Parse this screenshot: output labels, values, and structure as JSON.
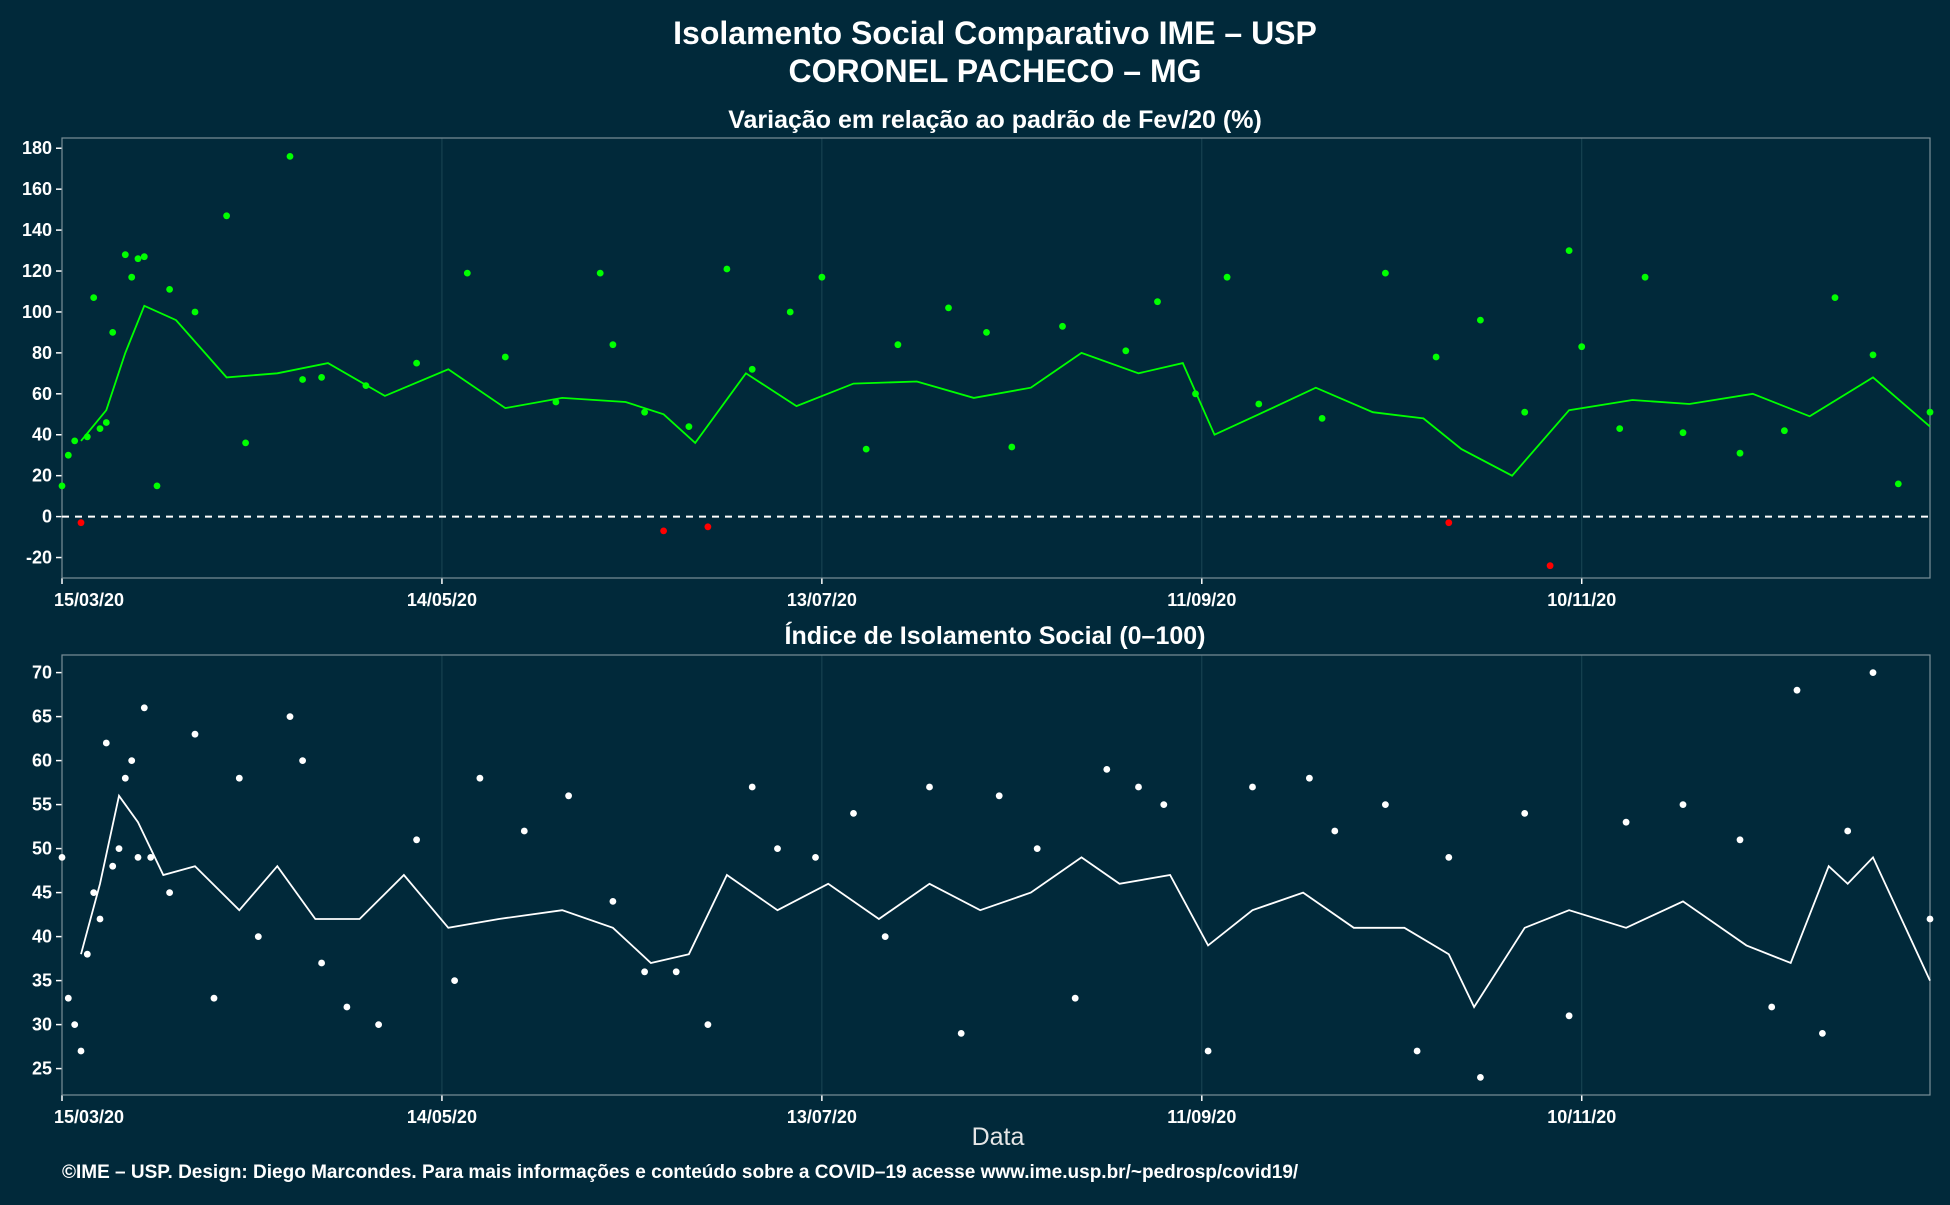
{
  "title": "Isolamento Social Comparativo IME – USP",
  "subtitle": "CORONEL PACHECO – MG",
  "xlabel": "Data",
  "footer": "©IME – USP. Design: Diego Marcondes. Para mais informações e conteúdo sobre a COVID–19 acesse www.ime.usp.br/~pedrosp/covid19/",
  "colors": {
    "background": "#01293a",
    "positive": "#00ff00",
    "negative": "#ff0000",
    "index": "#ffffff",
    "grid": "#1b4654"
  },
  "chart_data": [
    {
      "type": "scatter",
      "title": "Variação em relação ao padrão de Fev/20 (%)",
      "x_start": "2020-03-15",
      "x_end": "2021-01-04",
      "x_ticks": [
        "15/03/20",
        "14/05/20",
        "13/07/20",
        "11/09/20",
        "10/11/20"
      ],
      "ylim": [
        -30,
        185
      ],
      "y_ticks": [
        -20,
        0,
        20,
        40,
        60,
        80,
        100,
        120,
        140,
        160,
        180
      ],
      "reference_line": 0,
      "grid": true,
      "series": [
        {
          "kind": "daily points (green ≥ 0, red < 0)",
          "x": [
            "2020-03-15",
            "2020-03-16",
            "2020-03-17",
            "2020-03-18",
            "2020-03-19",
            "2020-03-20",
            "2020-03-21",
            "2020-03-22",
            "2020-03-23",
            "2020-03-25",
            "2020-03-26",
            "2020-03-27",
            "2020-03-28",
            "2020-03-30",
            "2020-04-01",
            "2020-04-05",
            "2020-04-10",
            "2020-04-13",
            "2020-04-20",
            "2020-04-22",
            "2020-04-25",
            "2020-05-02",
            "2020-05-10",
            "2020-05-18",
            "2020-05-24",
            "2020-06-01",
            "2020-06-08",
            "2020-06-10",
            "2020-06-15",
            "2020-06-18",
            "2020-06-22",
            "2020-06-25",
            "2020-06-28",
            "2020-07-02",
            "2020-07-08",
            "2020-07-13",
            "2020-07-20",
            "2020-07-25",
            "2020-08-02",
            "2020-08-08",
            "2020-08-12",
            "2020-08-20",
            "2020-08-30",
            "2020-09-04",
            "2020-09-10",
            "2020-09-15",
            "2020-09-20",
            "2020-09-30",
            "2020-10-10",
            "2020-10-18",
            "2020-10-20",
            "2020-10-25",
            "2020-11-01",
            "2020-11-05",
            "2020-11-08",
            "2020-11-10",
            "2020-11-16",
            "2020-11-20",
            "2020-11-26",
            "2020-12-05",
            "2020-12-12",
            "2020-12-20",
            "2020-12-26",
            "2020-12-30",
            "2021-01-04"
          ],
          "values": [
            15,
            30,
            37,
            -3,
            39,
            107,
            43,
            46,
            90,
            128,
            117,
            126,
            127,
            15,
            111,
            100,
            147,
            36,
            176,
            67,
            68,
            64,
            75,
            119,
            78,
            56,
            119,
            84,
            51,
            -7,
            44,
            -5,
            121,
            72,
            100,
            117,
            33,
            84,
            102,
            90,
            34,
            93,
            81,
            105,
            60,
            117,
            55,
            48,
            119,
            78,
            -3,
            96,
            51,
            -24,
            130,
            83,
            43,
            117,
            41,
            31,
            42,
            107,
            79,
            16,
            51
          ]
        },
        {
          "kind": "7-day moving average",
          "x": [
            "2020-03-18",
            "2020-03-22",
            "2020-03-25",
            "2020-03-28",
            "2020-04-02",
            "2020-04-10",
            "2020-04-18",
            "2020-04-26",
            "2020-05-05",
            "2020-05-15",
            "2020-05-24",
            "2020-06-02",
            "2020-06-12",
            "2020-06-18",
            "2020-06-23",
            "2020-07-01",
            "2020-07-09",
            "2020-07-18",
            "2020-07-28",
            "2020-08-06",
            "2020-08-15",
            "2020-08-23",
            "2020-09-01",
            "2020-09-08",
            "2020-09-13",
            "2020-09-20",
            "2020-09-29",
            "2020-10-08",
            "2020-10-16",
            "2020-10-22",
            "2020-10-30",
            "2020-11-08",
            "2020-11-18",
            "2020-11-27",
            "2020-12-07",
            "2020-12-16",
            "2020-12-26",
            "2021-01-04"
          ],
          "values": [
            37,
            52,
            80,
            103,
            96,
            68,
            70,
            75,
            59,
            72,
            53,
            58,
            56,
            50,
            36,
            70,
            54,
            65,
            66,
            58,
            63,
            80,
            70,
            75,
            40,
            50,
            63,
            51,
            48,
            33,
            20,
            52,
            57,
            55,
            60,
            49,
            68,
            44
          ]
        }
      ]
    },
    {
      "type": "scatter",
      "title": "Índice de Isolamento Social (0–100)",
      "x_start": "2020-03-15",
      "x_end": "2021-01-04",
      "x_ticks": [
        "15/03/20",
        "14/05/20",
        "13/07/20",
        "11/09/20",
        "10/11/20"
      ],
      "ylim": [
        22,
        72
      ],
      "y_ticks": [
        25,
        30,
        35,
        40,
        45,
        50,
        55,
        60,
        65,
        70
      ],
      "grid": true,
      "series": [
        {
          "kind": "daily points",
          "x": [
            "2020-03-15",
            "2020-03-16",
            "2020-03-17",
            "2020-03-18",
            "2020-03-19",
            "2020-03-20",
            "2020-03-21",
            "2020-03-22",
            "2020-03-23",
            "2020-03-24",
            "2020-03-25",
            "2020-03-26",
            "2020-03-27",
            "2020-03-28",
            "2020-03-29",
            "2020-04-01",
            "2020-04-05",
            "2020-04-08",
            "2020-04-12",
            "2020-04-15",
            "2020-04-20",
            "2020-04-22",
            "2020-04-25",
            "2020-04-29",
            "2020-05-04",
            "2020-05-10",
            "2020-05-16",
            "2020-05-20",
            "2020-05-27",
            "2020-06-03",
            "2020-06-10",
            "2020-06-15",
            "2020-06-20",
            "2020-06-25",
            "2020-07-02",
            "2020-07-06",
            "2020-07-12",
            "2020-07-18",
            "2020-07-23",
            "2020-07-30",
            "2020-08-04",
            "2020-08-10",
            "2020-08-16",
            "2020-08-22",
            "2020-08-27",
            "2020-09-01",
            "2020-09-05",
            "2020-09-12",
            "2020-09-19",
            "2020-09-28",
            "2020-10-02",
            "2020-10-10",
            "2020-10-15",
            "2020-10-20",
            "2020-10-25",
            "2020-11-01",
            "2020-11-08",
            "2020-11-17",
            "2020-11-26",
            "2020-12-05",
            "2020-12-10",
            "2020-12-14",
            "2020-12-18",
            "2020-12-22",
            "2020-12-26",
            "2021-01-04"
          ],
          "values": [
            49,
            33,
            30,
            27,
            38,
            45,
            42,
            62,
            48,
            50,
            58,
            60,
            49,
            66,
            49,
            45,
            63,
            33,
            58,
            40,
            65,
            60,
            37,
            32,
            30,
            51,
            35,
            58,
            52,
            56,
            44,
            36,
            36,
            30,
            57,
            50,
            49,
            54,
            40,
            57,
            29,
            56,
            50,
            33,
            59,
            57,
            55,
            27,
            57,
            58,
            52,
            55,
            27,
            49,
            24,
            54,
            31,
            53,
            55,
            51,
            32,
            68,
            29,
            52,
            70,
            42
          ]
        },
        {
          "kind": "7-day moving average",
          "x": [
            "2020-03-18",
            "2020-03-21",
            "2020-03-24",
            "2020-03-27",
            "2020-03-31",
            "2020-04-05",
            "2020-04-12",
            "2020-04-18",
            "2020-04-24",
            "2020-05-01",
            "2020-05-08",
            "2020-05-15",
            "2020-05-23",
            "2020-06-02",
            "2020-06-10",
            "2020-06-16",
            "2020-06-22",
            "2020-06-28",
            "2020-07-06",
            "2020-07-14",
            "2020-07-22",
            "2020-07-30",
            "2020-08-07",
            "2020-08-15",
            "2020-08-23",
            "2020-08-29",
            "2020-09-06",
            "2020-09-12",
            "2020-09-19",
            "2020-09-27",
            "2020-10-05",
            "2020-10-13",
            "2020-10-20",
            "2020-10-24",
            "2020-11-01",
            "2020-11-08",
            "2020-11-17",
            "2020-11-26",
            "2020-12-06",
            "2020-12-13",
            "2020-12-19",
            "2020-12-22",
            "2020-12-26",
            "2021-01-04"
          ],
          "values": [
            38,
            46,
            56,
            53,
            47,
            48,
            43,
            48,
            42,
            42,
            47,
            41,
            42,
            43,
            41,
            37,
            38,
            47,
            43,
            46,
            42,
            46,
            43,
            45,
            49,
            46,
            47,
            39,
            43,
            45,
            41,
            41,
            38,
            32,
            41,
            43,
            41,
            44,
            39,
            37,
            48,
            46,
            49,
            35
          ]
        }
      ]
    }
  ]
}
